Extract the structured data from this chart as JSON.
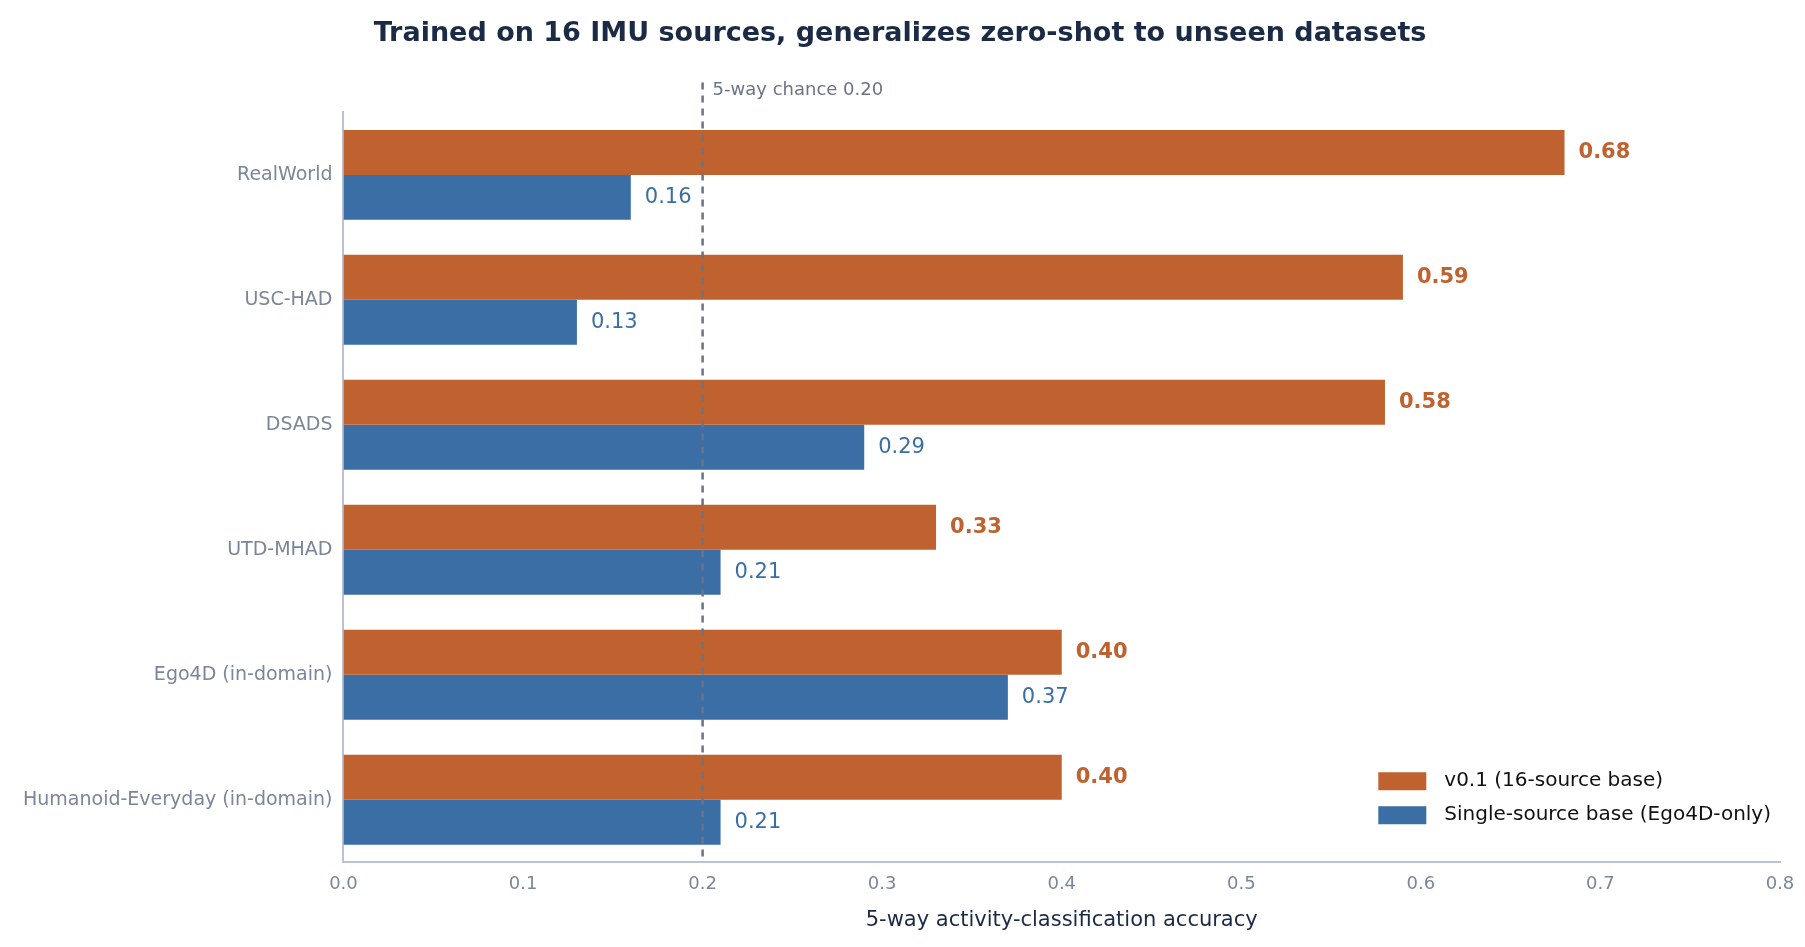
{
  "chart_data": {
    "type": "bar",
    "orientation": "horizontal",
    "title": "Trained on 16 IMU sources, generalizes zero-shot to unseen datasets",
    "xlabel": "5-way activity-classification accuracy",
    "categories": [
      "RealWorld",
      "USC-HAD",
      "DSADS",
      "UTD-MHAD",
      "Ego4D (in-domain)",
      "Humanoid-Everyday (in-domain)"
    ],
    "series": [
      {
        "name": "v0.1 (16-source base)",
        "color": "#c0622f",
        "values": [
          0.68,
          0.59,
          0.58,
          0.33,
          0.4,
          0.4
        ],
        "value_labels": [
          "0.68",
          "0.59",
          "0.58",
          "0.33",
          "0.40",
          "0.40"
        ]
      },
      {
        "name": "Single-source base (Ego4D-only)",
        "color": "#3a6ea5",
        "values": [
          0.16,
          0.13,
          0.29,
          0.21,
          0.37,
          0.21
        ],
        "value_labels": [
          "0.16",
          "0.13",
          "0.29",
          "0.21",
          "0.37",
          "0.21"
        ]
      }
    ],
    "xlim": [
      0,
      0.8
    ],
    "xticks": [
      {
        "value": 0,
        "label": "0.0"
      },
      0.1,
      0.2,
      0.3,
      0.4,
      0.5,
      0.6,
      0.7,
      0.8
    ],
    "ref_lines": [
      {
        "axis": "x",
        "value": 0.2,
        "label": "5-way chance 0.20",
        "color": "#6b7385",
        "line_style": "dashed"
      }
    ],
    "grid": false,
    "legend": "bottom right"
  }
}
